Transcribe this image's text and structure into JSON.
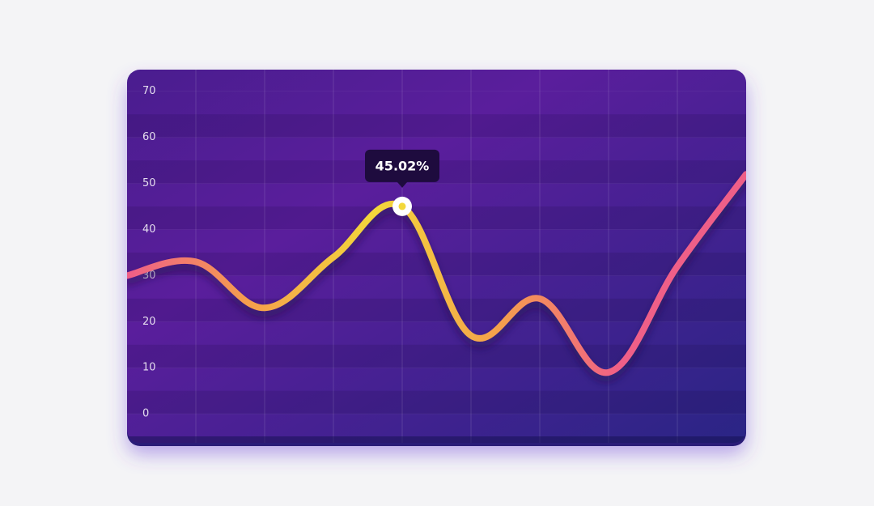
{
  "chart_data": {
    "type": "line",
    "values": [
      30,
      33,
      23,
      34,
      45.02,
      17,
      25,
      9,
      32,
      52
    ],
    "value_labels": [
      null,
      null,
      null,
      null,
      "45.02%",
      null,
      null,
      null,
      null,
      null
    ],
    "colors": [
      "#ef5e88",
      "#f5a04c",
      "#f3d83a",
      "#f5a04c",
      "#ef5e88",
      "#ef5e88"
    ],
    "ylim": [
      -6.3,
      74.7
    ],
    "yticks": [
      0,
      10,
      20,
      30,
      40,
      50,
      60,
      70
    ],
    "grid": true
  }
}
